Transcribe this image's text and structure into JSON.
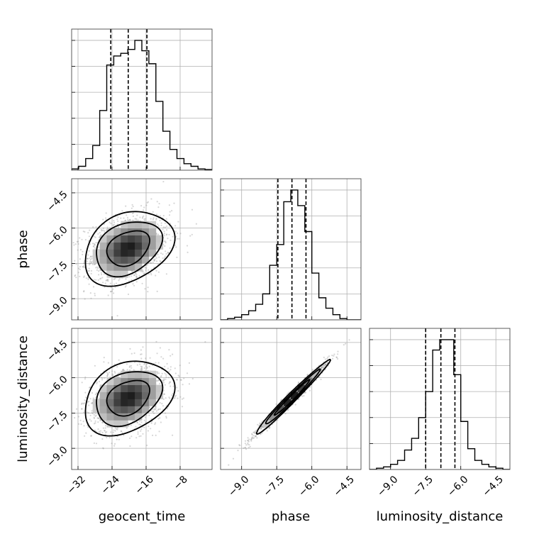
{
  "chart_data": {
    "type": "corner",
    "parameters": [
      "geocent_time",
      "phase",
      "luminosity_distance"
    ],
    "ticks": {
      "geocent_time": {
        "values": [
          -32,
          -24,
          -16,
          -8
        ],
        "labels": [
          "−32",
          "−24",
          "−16",
          "−8"
        ]
      },
      "phase": {
        "values": [
          -9.0,
          -7.5,
          -6.0,
          -4.5
        ],
        "labels": [
          "−9.0",
          "−7.5",
          "−6.0",
          "−4.5"
        ]
      },
      "luminosity_distance": {
        "values": [
          -9.0,
          -7.5,
          -6.0,
          -4.5
        ],
        "labels": [
          "−9.0",
          "−7.5",
          "−6.0",
          "−4.5"
        ]
      }
    },
    "ranges": {
      "geocent_time": [
        -33.5,
        -0.5
      ],
      "phase": [
        -9.9,
        -3.9
      ],
      "luminosity_distance": [
        -9.9,
        -3.9
      ]
    },
    "grid": true,
    "histograms": {
      "geocent_time": {
        "bin_edges": [
          -33.5,
          -31.85,
          -30.2,
          -28.55,
          -26.9,
          -25.25,
          -23.6,
          -21.95,
          -20.3,
          -18.65,
          -17.0,
          -15.35,
          -13.7,
          -12.05,
          -10.4,
          -8.75,
          -7.1,
          -5.45,
          -3.8,
          -2.15,
          -0.5
        ],
        "counts": [
          1,
          3,
          9,
          19,
          46,
          81,
          88,
          90,
          93,
          100,
          92,
          82,
          53,
          30,
          16,
          9,
          5,
          3,
          1,
          0.5
        ],
        "quantiles": [
          -24.3,
          -20.2,
          -15.8
        ]
      },
      "phase": {
        "bin_edges": [
          -9.9,
          -9.6,
          -9.3,
          -9.0,
          -8.7,
          -8.4,
          -8.1,
          -7.8,
          -7.5,
          -7.2,
          -6.9,
          -6.6,
          -6.3,
          -6.0,
          -5.7,
          -5.4,
          -5.1,
          -4.8,
          -4.5,
          -4.2,
          -3.9
        ],
        "counts": [
          0,
          1,
          2,
          4,
          7,
          12,
          20,
          42,
          58,
          91,
          100,
          88,
          68,
          36,
          17,
          9,
          4,
          1,
          0,
          0
        ],
        "quantiles": [
          -7.45,
          -6.85,
          -6.25
        ]
      },
      "luminosity_distance": {
        "bin_edges": [
          -9.9,
          -9.6,
          -9.3,
          -9.0,
          -8.7,
          -8.4,
          -8.1,
          -7.8,
          -7.5,
          -7.2,
          -6.9,
          -6.6,
          -6.3,
          -6.0,
          -5.7,
          -5.4,
          -5.1,
          -4.8,
          -4.5,
          -4.2,
          -3.9
        ],
        "counts": [
          0,
          1,
          2,
          4,
          7,
          15,
          24,
          40,
          60,
          92,
          100,
          100,
          73,
          37,
          16,
          7,
          4,
          2,
          1,
          0
        ],
        "quantiles": [
          -7.5,
          -6.85,
          -6.25
        ]
      }
    },
    "joint": {
      "phase|geocent_time": {
        "center": [
          -20.2,
          -6.85
        ],
        "std": [
          5.0,
          0.75
        ],
        "corr": 0.3,
        "contour_sigmas": [
          1.0,
          1.55,
          2.1
        ]
      },
      "luminosity_distance|geocent_time": {
        "center": [
          -20.2,
          -6.85
        ],
        "std": [
          5.0,
          0.75
        ],
        "corr": 0.3,
        "contour_sigmas": [
          1.0,
          1.55,
          2.1
        ]
      },
      "luminosity_distance|phase": {
        "center": [
          -6.85,
          -6.85
        ],
        "std": [
          0.75,
          0.75
        ],
        "corr": 0.985,
        "contour_sigmas": [
          1.0,
          1.55,
          2.1
        ]
      }
    }
  }
}
